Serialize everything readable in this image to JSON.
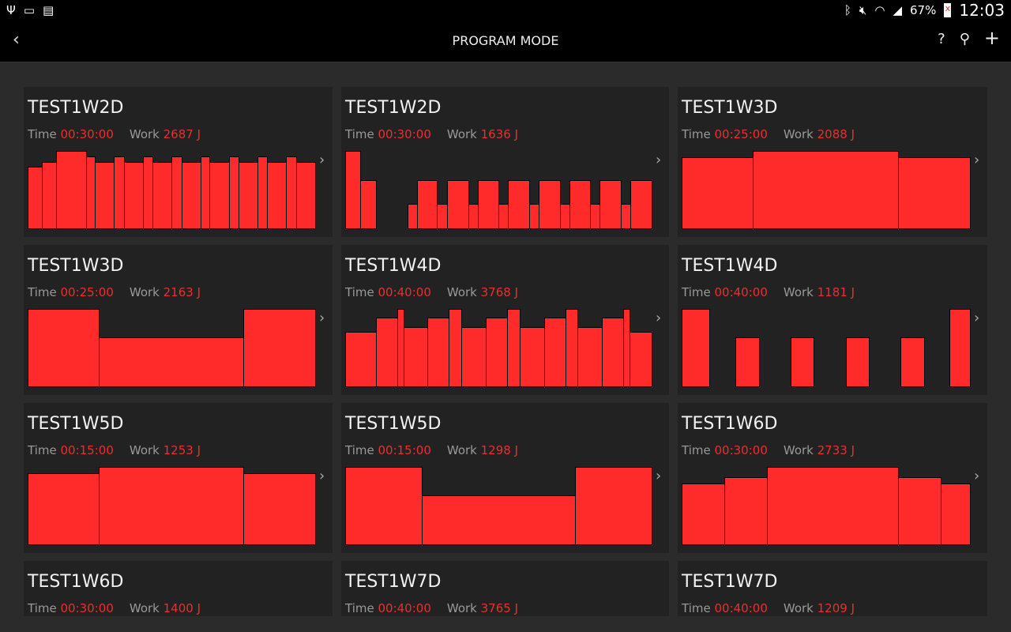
{
  "status_bar": {
    "left_icons": [
      "usb-icon",
      "screen-cast-icon",
      "sim-off-icon"
    ],
    "right_icons": [
      "bluetooth-icon",
      "mute-icon",
      "wifi-icon",
      "signal-icon"
    ],
    "battery": "67%",
    "time": "12:03"
  },
  "header": {
    "title": "PROGRAM MODE",
    "back_icon": "chevron-left-icon",
    "actions": [
      {
        "icon": "help-icon",
        "glyph": "?"
      },
      {
        "icon": "search-icon",
        "glyph": "⚲"
      },
      {
        "icon": "add-icon",
        "glyph": "+"
      }
    ]
  },
  "labels": {
    "time": "Time",
    "work": "Work"
  },
  "colors": {
    "accent": "#e8302f",
    "bar": "#ff2a2a",
    "card": "#222222",
    "background": "#2b2b2b"
  },
  "programs": [
    {
      "name": "TEST1W2D",
      "time": "00:30:00",
      "work": "2687 J",
      "segments": [
        [
          17,
          80
        ],
        [
          17,
          86
        ],
        [
          36,
          100
        ],
        [
          11,
          93
        ],
        [
          23,
          86
        ],
        [
          12,
          93
        ],
        [
          23,
          86
        ],
        [
          11,
          93
        ],
        [
          23,
          86
        ],
        [
          12,
          93
        ],
        [
          23,
          86
        ],
        [
          11,
          93
        ],
        [
          23,
          86
        ],
        [
          12,
          93
        ],
        [
          23,
          86
        ],
        [
          11,
          93
        ],
        [
          23,
          86
        ],
        [
          12,
          93
        ],
        [
          23,
          86
        ]
      ]
    },
    {
      "name": "TEST1W2D",
      "time": "00:30:00",
      "work": "1636 J",
      "segments": [
        [
          19,
          100
        ],
        [
          20,
          63
        ],
        [
          40,
          0
        ],
        [
          12,
          32
        ],
        [
          26,
          63
        ],
        [
          13,
          32
        ],
        [
          27,
          63
        ],
        [
          12,
          32
        ],
        [
          26,
          63
        ],
        [
          12,
          32
        ],
        [
          27,
          63
        ],
        [
          12,
          32
        ],
        [
          27,
          63
        ],
        [
          12,
          32
        ],
        [
          27,
          63
        ],
        [
          12,
          32
        ],
        [
          27,
          63
        ],
        [
          12,
          32
        ],
        [
          27,
          63
        ]
      ]
    },
    {
      "name": "TEST1W3D",
      "time": "00:25:00",
      "work": "2088 J",
      "segments": [
        [
          90,
          92
        ],
        [
          183,
          100
        ],
        [
          91,
          92
        ]
      ]
    },
    {
      "name": "TEST1W3D",
      "time": "00:25:00",
      "work": "2163 J",
      "segments": [
        [
          90,
          100
        ],
        [
          183,
          64
        ],
        [
          91,
          100
        ]
      ]
    },
    {
      "name": "TEST1W4D",
      "time": "00:40:00",
      "work": "3768 J",
      "segments": [
        [
          39,
          71
        ],
        [
          27,
          89
        ],
        [
          8,
          100
        ],
        [
          31,
          77
        ],
        [
          27,
          89
        ],
        [
          16,
          100
        ],
        [
          31,
          77
        ],
        [
          27,
          89
        ],
        [
          16,
          100
        ],
        [
          31,
          77
        ],
        [
          27,
          89
        ],
        [
          16,
          100
        ],
        [
          31,
          77
        ],
        [
          27,
          89
        ],
        [
          8,
          100
        ],
        [
          28,
          71
        ]
      ]
    },
    {
      "name": "TEST1W4D",
      "time": "00:40:00",
      "work": "1181 J",
      "segments": [
        [
          35,
          100
        ],
        [
          33,
          0
        ],
        [
          30,
          64
        ],
        [
          40,
          0
        ],
        [
          29,
          64
        ],
        [
          40,
          0
        ],
        [
          29,
          64
        ],
        [
          40,
          0
        ],
        [
          30,
          64
        ],
        [
          32,
          0
        ],
        [
          26,
          100
        ]
      ]
    },
    {
      "name": "TEST1W5D",
      "time": "00:15:00",
      "work": "1253 J",
      "segments": [
        [
          90,
          92
        ],
        [
          183,
          100
        ],
        [
          91,
          92
        ]
      ]
    },
    {
      "name": "TEST1W5D",
      "time": "00:15:00",
      "work": "1298 J",
      "segments": [
        [
          97,
          100
        ],
        [
          195,
          64
        ],
        [
          98,
          100
        ]
      ]
    },
    {
      "name": "TEST1W6D",
      "time": "00:30:00",
      "work": "2733 J",
      "segments": [
        [
          54,
          79
        ],
        [
          54,
          87
        ],
        [
          165,
          100
        ],
        [
          54,
          87
        ],
        [
          37,
          79
        ]
      ]
    },
    {
      "name": "TEST1W6D",
      "time": "00:30:00",
      "work": "1400 J",
      "segments": []
    },
    {
      "name": "TEST1W7D",
      "time": "00:40:00",
      "work": "3765 J",
      "segments": []
    },
    {
      "name": "TEST1W7D",
      "time": "00:40:00",
      "work": "1209 J",
      "segments": []
    }
  ]
}
